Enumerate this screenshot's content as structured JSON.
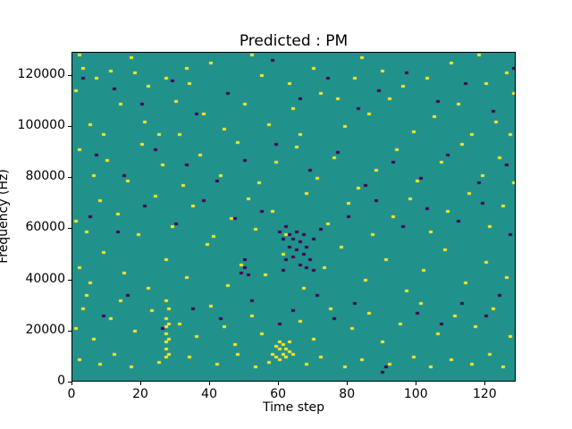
{
  "chart_data": {
    "type": "heatmap",
    "title": "Predicted : PM",
    "xlabel": "Time step",
    "ylabel": "Frequency (Hz)",
    "xlim": [
      0,
      129
    ],
    "ylim": [
      0,
      129000
    ],
    "x_ticks": [
      0,
      20,
      40,
      60,
      80,
      100,
      120
    ],
    "y_ticks": [
      0,
      20000,
      40000,
      60000,
      80000,
      100000,
      120000
    ],
    "grid": false,
    "legend": "none",
    "colors": {
      "background": "#21918c",
      "high": "#fde725",
      "low": "#440154"
    },
    "cell_units": {
      "x": "time_step",
      "y": "kHz"
    },
    "high_cells": [
      [
        2,
        127
      ],
      [
        3,
        122
      ],
      [
        7,
        118
      ],
      [
        11,
        121
      ],
      [
        17,
        126
      ],
      [
        18,
        120
      ],
      [
        22,
        115
      ],
      [
        27,
        118
      ],
      [
        33,
        122
      ],
      [
        34,
        116
      ],
      [
        40,
        124
      ],
      [
        52,
        127
      ],
      [
        55,
        119
      ],
      [
        63,
        116
      ],
      [
        70,
        122
      ],
      [
        77,
        110
      ],
      [
        82,
        118
      ],
      [
        84,
        126
      ],
      [
        90,
        121
      ],
      [
        96,
        115
      ],
      [
        103,
        118
      ],
      [
        110,
        124
      ],
      [
        118,
        127
      ],
      [
        120,
        116
      ],
      [
        126,
        120
      ],
      [
        128,
        112
      ],
      [
        1,
        113
      ],
      [
        5,
        100
      ],
      [
        9,
        96
      ],
      [
        14,
        108
      ],
      [
        21,
        101
      ],
      [
        25,
        96
      ],
      [
        30,
        109
      ],
      [
        31,
        96
      ],
      [
        38,
        104
      ],
      [
        44,
        98
      ],
      [
        50,
        108
      ],
      [
        57,
        100
      ],
      [
        64,
        106
      ],
      [
        66,
        96
      ],
      [
        72,
        112
      ],
      [
        79,
        99
      ],
      [
        86,
        104
      ],
      [
        92,
        110
      ],
      [
        99,
        97
      ],
      [
        105,
        103
      ],
      [
        112,
        108
      ],
      [
        116,
        96
      ],
      [
        123,
        101
      ],
      [
        127,
        96
      ],
      [
        2,
        90
      ],
      [
        6,
        80
      ],
      [
        10,
        86
      ],
      [
        16,
        78
      ],
      [
        20,
        92
      ],
      [
        26,
        84
      ],
      [
        32,
        76
      ],
      [
        37,
        88
      ],
      [
        43,
        80
      ],
      [
        48,
        93
      ],
      [
        54,
        77
      ],
      [
        59,
        85
      ],
      [
        65,
        91
      ],
      [
        71,
        79
      ],
      [
        76,
        87
      ],
      [
        83,
        75
      ],
      [
        88,
        82
      ],
      [
        94,
        90
      ],
      [
        100,
        78
      ],
      [
        107,
        85
      ],
      [
        113,
        92
      ],
      [
        119,
        80
      ],
      [
        124,
        87
      ],
      [
        128,
        77
      ],
      [
        1,
        62
      ],
      [
        4,
        58
      ],
      [
        8,
        70
      ],
      [
        13,
        65
      ],
      [
        19,
        57
      ],
      [
        24,
        72
      ],
      [
        29,
        60
      ],
      [
        35,
        68
      ],
      [
        41,
        56
      ],
      [
        46,
        63
      ],
      [
        51,
        71
      ],
      [
        53,
        59
      ],
      [
        58,
        66
      ],
      [
        62,
        57
      ],
      [
        68,
        73
      ],
      [
        74,
        61
      ],
      [
        80,
        69
      ],
      [
        87,
        57
      ],
      [
        93,
        64
      ],
      [
        98,
        71
      ],
      [
        104,
        58
      ],
      [
        109,
        66
      ],
      [
        115,
        73
      ],
      [
        121,
        60
      ],
      [
        125,
        68
      ],
      [
        2,
        44
      ],
      [
        5,
        38
      ],
      [
        9,
        50
      ],
      [
        15,
        42
      ],
      [
        22,
        36
      ],
      [
        27,
        47
      ],
      [
        33,
        40
      ],
      [
        39,
        53
      ],
      [
        45,
        37
      ],
      [
        49,
        45
      ],
      [
        56,
        41
      ],
      [
        61,
        49
      ],
      [
        67,
        36
      ],
      [
        73,
        44
      ],
      [
        78,
        52
      ],
      [
        85,
        39
      ],
      [
        91,
        47
      ],
      [
        97,
        35
      ],
      [
        102,
        43
      ],
      [
        108,
        51
      ],
      [
        114,
        38
      ],
      [
        120,
        46
      ],
      [
        126,
        40
      ],
      [
        27,
        9
      ],
      [
        27,
        12
      ],
      [
        27,
        15
      ],
      [
        27,
        18
      ],
      [
        27,
        21
      ],
      [
        27,
        24
      ],
      [
        27,
        31
      ],
      [
        28,
        10
      ],
      [
        28,
        16
      ],
      [
        28,
        22
      ],
      [
        28,
        28
      ],
      [
        58,
        10
      ],
      [
        59,
        9
      ],
      [
        59,
        13
      ],
      [
        60,
        8
      ],
      [
        60,
        12
      ],
      [
        60,
        15
      ],
      [
        61,
        10
      ],
      [
        61,
        14
      ],
      [
        62,
        9
      ],
      [
        62,
        12
      ],
      [
        63,
        11
      ],
      [
        63,
        15
      ],
      [
        64,
        10
      ],
      [
        1,
        20
      ],
      [
        3,
        28
      ],
      [
        6,
        16
      ],
      [
        11,
        24
      ],
      [
        14,
        31
      ],
      [
        18,
        19
      ],
      [
        23,
        27
      ],
      [
        31,
        22
      ],
      [
        36,
        17
      ],
      [
        40,
        29
      ],
      [
        44,
        21
      ],
      [
        47,
        14
      ],
      [
        52,
        25
      ],
      [
        55,
        18
      ],
      [
        66,
        23
      ],
      [
        70,
        16
      ],
      [
        75,
        28
      ],
      [
        81,
        20
      ],
      [
        86,
        26
      ],
      [
        90,
        15
      ],
      [
        95,
        22
      ],
      [
        101,
        30
      ],
      [
        106,
        18
      ],
      [
        111,
        25
      ],
      [
        117,
        21
      ],
      [
        122,
        28
      ],
      [
        127,
        17
      ],
      [
        2,
        8
      ],
      [
        4,
        33
      ],
      [
        8,
        6
      ],
      [
        12,
        10
      ],
      [
        17,
        5
      ],
      [
        25,
        7
      ],
      [
        34,
        9
      ],
      [
        42,
        6
      ],
      [
        48,
        10
      ],
      [
        53,
        5
      ],
      [
        57,
        7
      ],
      [
        68,
        6
      ],
      [
        72,
        9
      ],
      [
        79,
        5
      ],
      [
        84,
        8
      ],
      [
        92,
        6
      ],
      [
        99,
        9
      ],
      [
        104,
        5
      ],
      [
        110,
        8
      ],
      [
        116,
        6
      ],
      [
        121,
        10
      ],
      [
        125,
        5
      ]
    ],
    "low_cells": [
      [
        60,
        58
      ],
      [
        61,
        55
      ],
      [
        61,
        43
      ],
      [
        62,
        60
      ],
      [
        62,
        47
      ],
      [
        63,
        52
      ],
      [
        63,
        57
      ],
      [
        64,
        48
      ],
      [
        64,
        55
      ],
      [
        65,
        51
      ],
      [
        65,
        58
      ],
      [
        66,
        45
      ],
      [
        66,
        54
      ],
      [
        67,
        49
      ],
      [
        67,
        57
      ],
      [
        68,
        44
      ],
      [
        68,
        52
      ],
      [
        69,
        47
      ],
      [
        70,
        43
      ],
      [
        70,
        55
      ],
      [
        49,
        42
      ],
      [
        50,
        44
      ],
      [
        50,
        47
      ],
      [
        51,
        41
      ],
      [
        3,
        118
      ],
      [
        12,
        114
      ],
      [
        20,
        108
      ],
      [
        29,
        117
      ],
      [
        36,
        104
      ],
      [
        45,
        112
      ],
      [
        58,
        125
      ],
      [
        66,
        110
      ],
      [
        74,
        118
      ],
      [
        83,
        106
      ],
      [
        89,
        113
      ],
      [
        97,
        120
      ],
      [
        106,
        109
      ],
      [
        114,
        116
      ],
      [
        122,
        105
      ],
      [
        128,
        122
      ],
      [
        7,
        88
      ],
      [
        15,
        80
      ],
      [
        24,
        90
      ],
      [
        33,
        84
      ],
      [
        42,
        78
      ],
      [
        50,
        86
      ],
      [
        59,
        92
      ],
      [
        69,
        82
      ],
      [
        77,
        89
      ],
      [
        85,
        76
      ],
      [
        93,
        85
      ],
      [
        101,
        79
      ],
      [
        109,
        88
      ],
      [
        118,
        77
      ],
      [
        126,
        84
      ],
      [
        5,
        64
      ],
      [
        13,
        58
      ],
      [
        21,
        68
      ],
      [
        30,
        61
      ],
      [
        38,
        70
      ],
      [
        47,
        63
      ],
      [
        55,
        66
      ],
      [
        72,
        59
      ],
      [
        80,
        64
      ],
      [
        88,
        70
      ],
      [
        96,
        60
      ],
      [
        103,
        67
      ],
      [
        112,
        62
      ],
      [
        119,
        69
      ],
      [
        127,
        57
      ],
      [
        9,
        25
      ],
      [
        16,
        33
      ],
      [
        26,
        20
      ],
      [
        35,
        28
      ],
      [
        43,
        24
      ],
      [
        52,
        31
      ],
      [
        60,
        22
      ],
      [
        64,
        27
      ],
      [
        71,
        33
      ],
      [
        76,
        24
      ],
      [
        82,
        30
      ],
      [
        90,
        3
      ],
      [
        91,
        5
      ],
      [
        100,
        26
      ],
      [
        107,
        22
      ],
      [
        113,
        30
      ],
      [
        120,
        25
      ],
      [
        124,
        33
      ]
    ]
  }
}
